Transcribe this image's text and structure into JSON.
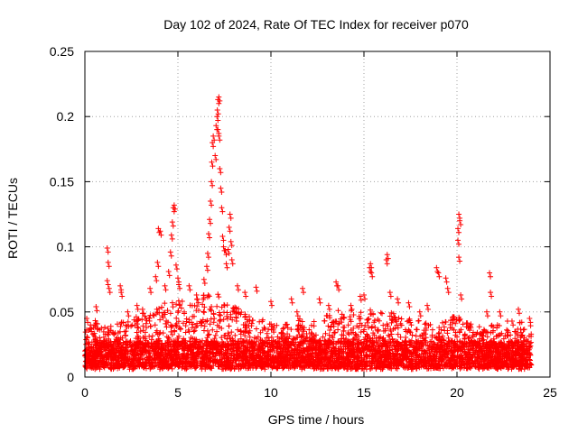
{
  "chart_data": {
    "type": "scatter",
    "title": "Day 102 of 2024, Rate Of TEC Index for receiver p070",
    "xlabel": "GPS time / hours",
    "ylabel": "ROTI / TECUs",
    "xlim": [
      0,
      25
    ],
    "ylim": [
      0,
      0.25
    ],
    "x_ticks": [
      0,
      5,
      10,
      15,
      20,
      25
    ],
    "y_ticks": [
      0,
      0.05,
      0.1,
      0.15,
      0.2,
      0.25
    ],
    "x_tick_labels": [
      "0",
      "5",
      "10",
      "15",
      "20",
      "25"
    ],
    "y_tick_labels": [
      "0",
      "0.05",
      "0.1",
      "0.15",
      "0.2",
      "0.25"
    ],
    "grid": true,
    "marker": "plus",
    "marker_color": "#ff0000",
    "series": [
      {
        "name": "ROTI",
        "note": "Dense point cloud between 0.005 and ~0.06 TECU for the full 0-24 h; listed points are the visible peaks/outliers",
        "points": [
          [
            0.1,
            0.045
          ],
          [
            0.3,
            0.04
          ],
          [
            0.6,
            0.054
          ],
          [
            1.2,
            0.099
          ],
          [
            1.25,
            0.088
          ],
          [
            1.2,
            0.074
          ],
          [
            1.3,
            0.068
          ],
          [
            1.9,
            0.07
          ],
          [
            1.95,
            0.065
          ],
          [
            2.3,
            0.05
          ],
          [
            2.8,
            0.055
          ],
          [
            3.1,
            0.052
          ],
          [
            3.5,
            0.068
          ],
          [
            3.8,
            0.077
          ],
          [
            3.9,
            0.088
          ],
          [
            3.95,
            0.114
          ],
          [
            4.05,
            0.112
          ],
          [
            4.3,
            0.07
          ],
          [
            4.5,
            0.081
          ],
          [
            4.6,
            0.096
          ],
          [
            4.65,
            0.109
          ],
          [
            4.75,
            0.13
          ],
          [
            4.8,
            0.132
          ],
          [
            4.7,
            0.119
          ],
          [
            4.9,
            0.086
          ],
          [
            5.0,
            0.076
          ],
          [
            5.05,
            0.071
          ],
          [
            5.6,
            0.07
          ],
          [
            6.0,
            0.063
          ],
          [
            6.4,
            0.075
          ],
          [
            6.55,
            0.085
          ],
          [
            6.6,
            0.095
          ],
          [
            6.65,
            0.11
          ],
          [
            6.7,
            0.121
          ],
          [
            6.75,
            0.135
          ],
          [
            6.8,
            0.15
          ],
          [
            6.82,
            0.165
          ],
          [
            6.85,
            0.18
          ],
          [
            6.9,
            0.185
          ],
          [
            7.0,
            0.17
          ],
          [
            7.05,
            0.193
          ],
          [
            7.1,
            0.2
          ],
          [
            7.12,
            0.205
          ],
          [
            7.15,
            0.213
          ],
          [
            7.2,
            0.215
          ],
          [
            7.15,
            0.19
          ],
          [
            7.2,
            0.185
          ],
          [
            7.25,
            0.16
          ],
          [
            7.3,
            0.145
          ],
          [
            7.35,
            0.13
          ],
          [
            7.4,
            0.108
          ],
          [
            7.45,
            0.1
          ],
          [
            7.55,
            0.097
          ],
          [
            7.6,
            0.087
          ],
          [
            7.7,
            0.098
          ],
          [
            7.75,
            0.115
          ],
          [
            7.8,
            0.125
          ],
          [
            7.85,
            0.104
          ],
          [
            7.9,
            0.09
          ],
          [
            8.2,
            0.07
          ],
          [
            8.6,
            0.065
          ],
          [
            9.2,
            0.069
          ],
          [
            10.0,
            0.058
          ],
          [
            11.1,
            0.06
          ],
          [
            11.4,
            0.05
          ],
          [
            11.7,
            0.068
          ],
          [
            12.6,
            0.06
          ],
          [
            13.1,
            0.055
          ],
          [
            13.5,
            0.073
          ],
          [
            13.6,
            0.07
          ],
          [
            14.3,
            0.055
          ],
          [
            14.8,
            0.062
          ],
          [
            15.0,
            0.063
          ],
          [
            15.3,
            0.084
          ],
          [
            15.35,
            0.087
          ],
          [
            15.4,
            0.08
          ],
          [
            16.2,
            0.09
          ],
          [
            16.25,
            0.094
          ],
          [
            16.4,
            0.065
          ],
          [
            16.8,
            0.06
          ],
          [
            17.4,
            0.057
          ],
          [
            18.0,
            0.05
          ],
          [
            18.4,
            0.055
          ],
          [
            18.9,
            0.084
          ],
          [
            19.0,
            0.08
          ],
          [
            19.4,
            0.076
          ],
          [
            19.5,
            0.068
          ],
          [
            20.05,
            0.114
          ],
          [
            20.1,
            0.125
          ],
          [
            20.15,
            0.12
          ],
          [
            20.05,
            0.105
          ],
          [
            20.1,
            0.092
          ],
          [
            20.2,
            0.063
          ],
          [
            21.6,
            0.05
          ],
          [
            21.75,
            0.08
          ],
          [
            21.8,
            0.065
          ],
          [
            22.3,
            0.05
          ],
          [
            23.3,
            0.052
          ],
          [
            23.9,
            0.045
          ]
        ],
        "envelope": [
          [
            0,
            0.035
          ],
          [
            0.5,
            0.045
          ],
          [
            1,
            0.038
          ],
          [
            1.5,
            0.04
          ],
          [
            2,
            0.045
          ],
          [
            2.5,
            0.048
          ],
          [
            3,
            0.05
          ],
          [
            3.5,
            0.05
          ],
          [
            4,
            0.055
          ],
          [
            4.5,
            0.058
          ],
          [
            5,
            0.06
          ],
          [
            5.5,
            0.058
          ],
          [
            6,
            0.06
          ],
          [
            6.5,
            0.065
          ],
          [
            7,
            0.065
          ],
          [
            7.5,
            0.06
          ],
          [
            8,
            0.055
          ],
          [
            8.5,
            0.05
          ],
          [
            9,
            0.048
          ],
          [
            9.5,
            0.045
          ],
          [
            10,
            0.042
          ],
          [
            10.5,
            0.04
          ],
          [
            11,
            0.042
          ],
          [
            11.5,
            0.045
          ],
          [
            12,
            0.042
          ],
          [
            12.5,
            0.045
          ],
          [
            13,
            0.048
          ],
          [
            13.5,
            0.052
          ],
          [
            14,
            0.05
          ],
          [
            14.5,
            0.052
          ],
          [
            15,
            0.055
          ],
          [
            15.5,
            0.052
          ],
          [
            16,
            0.05
          ],
          [
            16.5,
            0.05
          ],
          [
            17,
            0.048
          ],
          [
            17.5,
            0.045
          ],
          [
            18,
            0.045
          ],
          [
            18.5,
            0.042
          ],
          [
            19,
            0.04
          ],
          [
            19.5,
            0.045
          ],
          [
            20,
            0.048
          ],
          [
            20.5,
            0.042
          ],
          [
            21,
            0.04
          ],
          [
            21.5,
            0.042
          ],
          [
            22,
            0.04
          ],
          [
            22.5,
            0.042
          ],
          [
            23,
            0.045
          ],
          [
            23.5,
            0.042
          ],
          [
            24,
            0.04
          ]
        ]
      }
    ]
  }
}
